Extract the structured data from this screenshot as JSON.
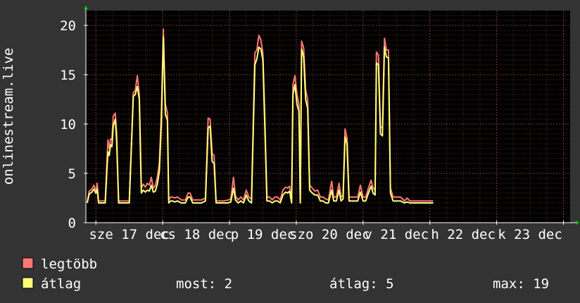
{
  "chart_data": {
    "type": "line",
    "title": "",
    "xlabel": "",
    "ylabel": "onlinestream.live",
    "ylim": [
      0,
      21.5
    ],
    "grid": true,
    "legend_position": "bottom-left",
    "yticks": [
      0,
      5,
      10,
      15,
      20
    ],
    "x_day_labels": [
      "sze 17 dec",
      "cs 18 dec",
      "p 19 dec",
      "szo 20 dec",
      "v 21 dec",
      "h 22 dec",
      "k 23 dec"
    ],
    "x_range_days": [
      -0.15,
      7.1
    ],
    "colors": {
      "background": "#333333",
      "plot_background": "#000000",
      "grid_minor": "#5a2a2a",
      "grid_major": "#7a3a3a",
      "max_series": "#ff7777",
      "avg_series": "#ffff77",
      "text": "#ffffff",
      "arrow": "#00cc00"
    },
    "series": [
      {
        "name": "legtöbb",
        "color": "#ff7777",
        "points": [
          [
            -0.13,
            2
          ],
          [
            -0.1,
            3.2
          ],
          [
            -0.06,
            3.4
          ],
          [
            -0.03,
            3.8
          ],
          [
            0,
            3.2
          ],
          [
            0.02,
            4
          ],
          [
            0.04,
            2.2
          ],
          [
            0.08,
            2.2
          ],
          [
            0.14,
            2.2
          ],
          [
            0.18,
            8.4
          ],
          [
            0.2,
            7.5
          ],
          [
            0.22,
            8.5
          ],
          [
            0.24,
            8.4
          ],
          [
            0.26,
            10.8
          ],
          [
            0.29,
            11.1
          ],
          [
            0.31,
            9
          ],
          [
            0.34,
            2.2
          ],
          [
            0.38,
            2.2
          ],
          [
            0.42,
            2.2
          ],
          [
            0.46,
            2.2
          ],
          [
            0.5,
            2.2
          ],
          [
            0.56,
            13.2
          ],
          [
            0.59,
            13.4
          ],
          [
            0.62,
            14.9
          ],
          [
            0.65,
            13
          ],
          [
            0.68,
            3.5
          ],
          [
            0.71,
            3.9
          ],
          [
            0.74,
            3.6
          ],
          [
            0.77,
            4
          ],
          [
            0.8,
            3.8
          ],
          [
            0.83,
            4.6
          ],
          [
            0.86,
            3.5
          ],
          [
            0.89,
            3.8
          ],
          [
            0.92,
            4.6
          ],
          [
            0.95,
            6.1
          ],
          [
            0.98,
            11
          ],
          [
            1.01,
            19.6
          ],
          [
            1.04,
            12
          ],
          [
            1.07,
            11.2
          ],
          [
            1.09,
            2.3
          ],
          [
            1.12,
            2.6
          ],
          [
            1.15,
            2.6
          ],
          [
            1.18,
            2.5
          ],
          [
            1.22,
            2.6
          ],
          [
            1.28,
            2.3
          ],
          [
            1.34,
            2.3
          ],
          [
            1.38,
            3
          ],
          [
            1.41,
            3
          ],
          [
            1.45,
            2.3
          ],
          [
            1.5,
            2.3
          ],
          [
            1.58,
            2.3
          ],
          [
            1.64,
            2.5
          ],
          [
            1.68,
            10.6
          ],
          [
            1.71,
            10.5
          ],
          [
            1.74,
            7
          ],
          [
            1.77,
            6.8
          ],
          [
            1.8,
            2.2
          ],
          [
            1.85,
            2.2
          ],
          [
            1.92,
            2.2
          ],
          [
            1.98,
            2.3
          ],
          [
            2.02,
            2.4
          ],
          [
            2.06,
            4.6
          ],
          [
            2.09,
            2.7
          ],
          [
            2.13,
            2.3
          ],
          [
            2.17,
            2.6
          ],
          [
            2.21,
            2.3
          ],
          [
            2.25,
            3.3
          ],
          [
            2.29,
            2.6
          ],
          [
            2.33,
            2.4
          ],
          [
            2.38,
            17.2
          ],
          [
            2.41,
            17.5
          ],
          [
            2.44,
            19
          ],
          [
            2.47,
            18.5
          ],
          [
            2.5,
            17.2
          ],
          [
            2.53,
            10.5
          ],
          [
            2.56,
            2.6
          ],
          [
            2.6,
            2.6
          ],
          [
            2.64,
            2.3
          ],
          [
            2.68,
            2.6
          ],
          [
            2.72,
            2.6
          ],
          [
            2.76,
            2.3
          ],
          [
            2.8,
            3.3
          ],
          [
            2.84,
            3.6
          ],
          [
            2.87,
            3.5
          ],
          [
            2.9,
            3.7
          ],
          [
            2.93,
            2.3
          ],
          [
            2.95,
            14
          ],
          [
            2.98,
            14.9
          ],
          [
            3.01,
            13
          ],
          [
            3.04,
            12
          ],
          [
            3.06,
            2.2
          ],
          [
            3.08,
            18.4
          ],
          [
            3.11,
            17.7
          ],
          [
            3.14,
            13.5
          ],
          [
            3.17,
            12.5
          ],
          [
            3.2,
            3.8
          ],
          [
            3.24,
            3.5
          ],
          [
            3.28,
            3.2
          ],
          [
            3.32,
            3.3
          ],
          [
            3.36,
            2.6
          ],
          [
            3.4,
            2.6
          ],
          [
            3.44,
            2.4
          ],
          [
            3.48,
            2.3
          ],
          [
            3.53,
            4.2
          ],
          [
            3.56,
            2.6
          ],
          [
            3.6,
            2.6
          ],
          [
            3.64,
            4
          ],
          [
            3.67,
            2.6
          ],
          [
            3.7,
            2.8
          ],
          [
            3.73,
            9.5
          ],
          [
            3.76,
            8.6
          ],
          [
            3.79,
            2.6
          ],
          [
            3.84,
            2.6
          ],
          [
            3.88,
            2.6
          ],
          [
            3.92,
            2.6
          ],
          [
            3.96,
            3.8
          ],
          [
            4,
            2.6
          ],
          [
            4.04,
            2.6
          ],
          [
            4.08,
            3.5
          ],
          [
            4.12,
            4.3
          ],
          [
            4.15,
            3.5
          ],
          [
            4.18,
            3.3
          ],
          [
            4.2,
            17.3
          ],
          [
            4.23,
            17
          ],
          [
            4.26,
            9.7
          ],
          [
            4.29,
            9.6
          ],
          [
            4.32,
            18.7
          ],
          [
            4.35,
            17.5
          ],
          [
            4.38,
            17.5
          ],
          [
            4.41,
            3.5
          ],
          [
            4.45,
            2.6
          ],
          [
            4.5,
            2.6
          ],
          [
            4.56,
            2.6
          ],
          [
            4.62,
            2.2
          ],
          [
            4.66,
            2.5
          ],
          [
            4.7,
            2.2
          ],
          [
            4.8,
            2.2
          ],
          [
            4.9,
            2.2
          ],
          [
            5.0,
            2.2
          ],
          [
            5.05,
            2.2
          ]
        ]
      },
      {
        "name": "átlag",
        "color": "#ffff77",
        "points": [
          [
            -0.13,
            2
          ],
          [
            -0.1,
            2.9
          ],
          [
            -0.06,
            3.1
          ],
          [
            -0.03,
            3.4
          ],
          [
            0,
            3
          ],
          [
            0.02,
            3.4
          ],
          [
            0.04,
            2
          ],
          [
            0.08,
            2
          ],
          [
            0.14,
            2
          ],
          [
            0.18,
            7.2
          ],
          [
            0.2,
            6.8
          ],
          [
            0.22,
            7.9
          ],
          [
            0.24,
            7.7
          ],
          [
            0.26,
            9.8
          ],
          [
            0.29,
            10.5
          ],
          [
            0.31,
            8.3
          ],
          [
            0.34,
            2
          ],
          [
            0.38,
            2
          ],
          [
            0.42,
            2
          ],
          [
            0.46,
            2
          ],
          [
            0.5,
            2
          ],
          [
            0.56,
            12.8
          ],
          [
            0.59,
            13
          ],
          [
            0.62,
            13.8
          ],
          [
            0.65,
            12.5
          ],
          [
            0.68,
            3
          ],
          [
            0.71,
            3.3
          ],
          [
            0.74,
            3.1
          ],
          [
            0.77,
            3.3
          ],
          [
            0.8,
            3.2
          ],
          [
            0.83,
            3.8
          ],
          [
            0.86,
            3.1
          ],
          [
            0.89,
            3.2
          ],
          [
            0.92,
            3.9
          ],
          [
            0.95,
            5.2
          ],
          [
            0.98,
            10
          ],
          [
            1.01,
            18.8
          ],
          [
            1.04,
            11
          ],
          [
            1.07,
            10.4
          ],
          [
            1.09,
            2
          ],
          [
            1.12,
            2.2
          ],
          [
            1.15,
            2.2
          ],
          [
            1.18,
            2.1
          ],
          [
            1.22,
            2.2
          ],
          [
            1.28,
            2
          ],
          [
            1.34,
            2
          ],
          [
            1.38,
            2.6
          ],
          [
            1.41,
            2.6
          ],
          [
            1.45,
            2
          ],
          [
            1.5,
            2
          ],
          [
            1.58,
            2
          ],
          [
            1.64,
            2.2
          ],
          [
            1.68,
            9.6
          ],
          [
            1.71,
            9.8
          ],
          [
            1.74,
            6.2
          ],
          [
            1.77,
            6
          ],
          [
            1.8,
            2
          ],
          [
            1.85,
            2
          ],
          [
            1.92,
            2
          ],
          [
            1.98,
            2
          ],
          [
            2.02,
            2.1
          ],
          [
            2.06,
            3.5
          ],
          [
            2.09,
            2.3
          ],
          [
            2.13,
            2
          ],
          [
            2.17,
            2.2
          ],
          [
            2.21,
            2
          ],
          [
            2.25,
            2.8
          ],
          [
            2.29,
            2.2
          ],
          [
            2.33,
            2
          ],
          [
            2.38,
            16
          ],
          [
            2.41,
            16.6
          ],
          [
            2.44,
            17.8
          ],
          [
            2.47,
            17.6
          ],
          [
            2.5,
            16.5
          ],
          [
            2.53,
            9.6
          ],
          [
            2.56,
            2.2
          ],
          [
            2.6,
            2.2
          ],
          [
            2.64,
            2
          ],
          [
            2.68,
            2.2
          ],
          [
            2.72,
            2.2
          ],
          [
            2.76,
            2
          ],
          [
            2.8,
            2.8
          ],
          [
            2.84,
            3.1
          ],
          [
            2.87,
            3
          ],
          [
            2.9,
            3.2
          ],
          [
            2.93,
            2
          ],
          [
            2.95,
            13
          ],
          [
            2.98,
            14
          ],
          [
            3.01,
            12
          ],
          [
            3.04,
            11.3
          ],
          [
            3.06,
            2
          ],
          [
            3.08,
            17.6
          ],
          [
            3.11,
            16.8
          ],
          [
            3.14,
            12.5
          ],
          [
            3.17,
            11.6
          ],
          [
            3.2,
            3.3
          ],
          [
            3.24,
            3
          ],
          [
            3.28,
            2.8
          ],
          [
            3.32,
            2.8
          ],
          [
            3.36,
            2.2
          ],
          [
            3.4,
            2.2
          ],
          [
            3.44,
            2
          ],
          [
            3.48,
            2
          ],
          [
            3.53,
            3.3
          ],
          [
            3.56,
            2.2
          ],
          [
            3.6,
            2.2
          ],
          [
            3.64,
            3.3
          ],
          [
            3.67,
            2.2
          ],
          [
            3.7,
            2.4
          ],
          [
            3.73,
            8.7
          ],
          [
            3.76,
            8
          ],
          [
            3.79,
            2.2
          ],
          [
            3.84,
            2.2
          ],
          [
            3.88,
            2.2
          ],
          [
            3.92,
            2.2
          ],
          [
            3.96,
            3.1
          ],
          [
            4,
            2.2
          ],
          [
            4.04,
            2.2
          ],
          [
            4.08,
            3
          ],
          [
            4.12,
            3.7
          ],
          [
            4.15,
            3
          ],
          [
            4.18,
            2.8
          ],
          [
            4.2,
            16.2
          ],
          [
            4.23,
            16
          ],
          [
            4.26,
            9
          ],
          [
            4.29,
            8.8
          ],
          [
            4.32,
            17.8
          ],
          [
            4.35,
            16.8
          ],
          [
            4.38,
            16.7
          ],
          [
            4.41,
            3
          ],
          [
            4.45,
            2.2
          ],
          [
            4.5,
            2.2
          ],
          [
            4.56,
            2.2
          ],
          [
            4.62,
            2
          ],
          [
            4.66,
            2.1
          ],
          [
            4.7,
            2
          ],
          [
            4.8,
            2
          ],
          [
            4.9,
            2
          ],
          [
            5.0,
            2
          ],
          [
            5.05,
            2
          ]
        ]
      }
    ]
  },
  "legend": [
    {
      "label": "legtöbb",
      "color": "#ff7777"
    },
    {
      "label": "átlag",
      "color": "#ffff77"
    }
  ],
  "stats": {
    "current": "most: 2",
    "average": "átlag: 5",
    "max": "max: 19"
  }
}
